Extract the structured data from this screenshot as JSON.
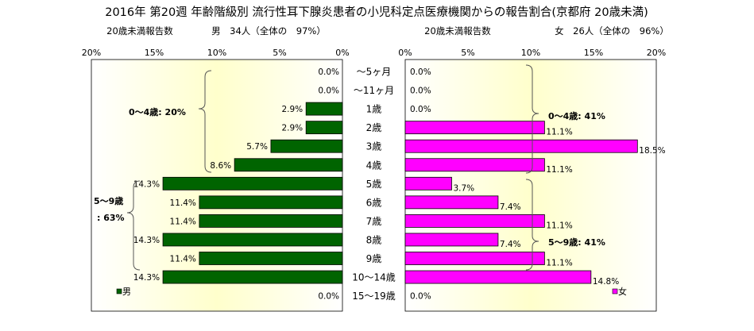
{
  "colors": {
    "male_bar": "#006400",
    "female_bar": "#ff00ff",
    "bar_outline": "#000000",
    "plot_bg_edge": "#ffffff",
    "plot_bg_center": "#ffffcc"
  },
  "chart_data": {
    "type": "bar",
    "orientation": "horizontal-butterfly",
    "title": "2016年 第20週 年齢階級別 流行性耳下腺炎患者の小児科定点医療機関からの報告割合(京都府 20歳未満)",
    "categories": [
      "～5ヶ月",
      "～11ヶ月",
      "1歳",
      "2歳",
      "3歳",
      "4歳",
      "5歳",
      "6歳",
      "7歳",
      "8歳",
      "9歳",
      "10～14歳",
      "15～19歳"
    ],
    "axis_ticks": [
      "20%",
      "15%",
      "10%",
      "5%",
      "0%"
    ],
    "axis_ticks_right": [
      "0%",
      "5%",
      "10%",
      "15%",
      "20%"
    ],
    "xlim": [
      0,
      20
    ],
    "series": [
      {
        "name": "男",
        "side": "left",
        "header_left": "20歳未満報告数",
        "header_summary": "男　34人（全体の　97%）",
        "values": [
          0.0,
          0.0,
          2.9,
          2.9,
          5.7,
          8.6,
          14.3,
          11.4,
          11.4,
          14.3,
          11.4,
          14.3,
          0.0
        ],
        "labels": [
          "0.0%",
          "0.0%",
          "2.9%",
          "2.9%",
          "5.7%",
          "8.6%",
          "14.3%",
          "11.4%",
          "11.4%",
          "14.3%",
          "11.4%",
          "14.3%",
          "0.0%"
        ],
        "groups": [
          {
            "label": "0～4歳: 20%",
            "from": 0,
            "to": 5
          },
          {
            "label_lines": [
              "5～9歳",
              ": 63%"
            ],
            "from": 6,
            "to": 10
          }
        ]
      },
      {
        "name": "女",
        "side": "right",
        "header_left": "20歳未満報告数",
        "header_summary": "女　26人（全体の　96%）",
        "values": [
          0.0,
          0.0,
          0.0,
          11.1,
          18.5,
          11.1,
          3.7,
          7.4,
          11.1,
          7.4,
          11.1,
          14.8,
          0.0
        ],
        "labels": [
          "0.0%",
          "0.0%",
          "0.0%",
          "11.1%",
          "18.5%",
          "11.1%",
          "3.7%",
          "7.4%",
          "11.1%",
          "7.4%",
          "11.1%",
          "14.8%",
          "0.0%"
        ],
        "groups": [
          {
            "label": "0～4歳: 41%",
            "from": 0,
            "to": 5
          },
          {
            "label": "5～9歳: 41%",
            "from": 6,
            "to": 10
          }
        ]
      }
    ]
  }
}
